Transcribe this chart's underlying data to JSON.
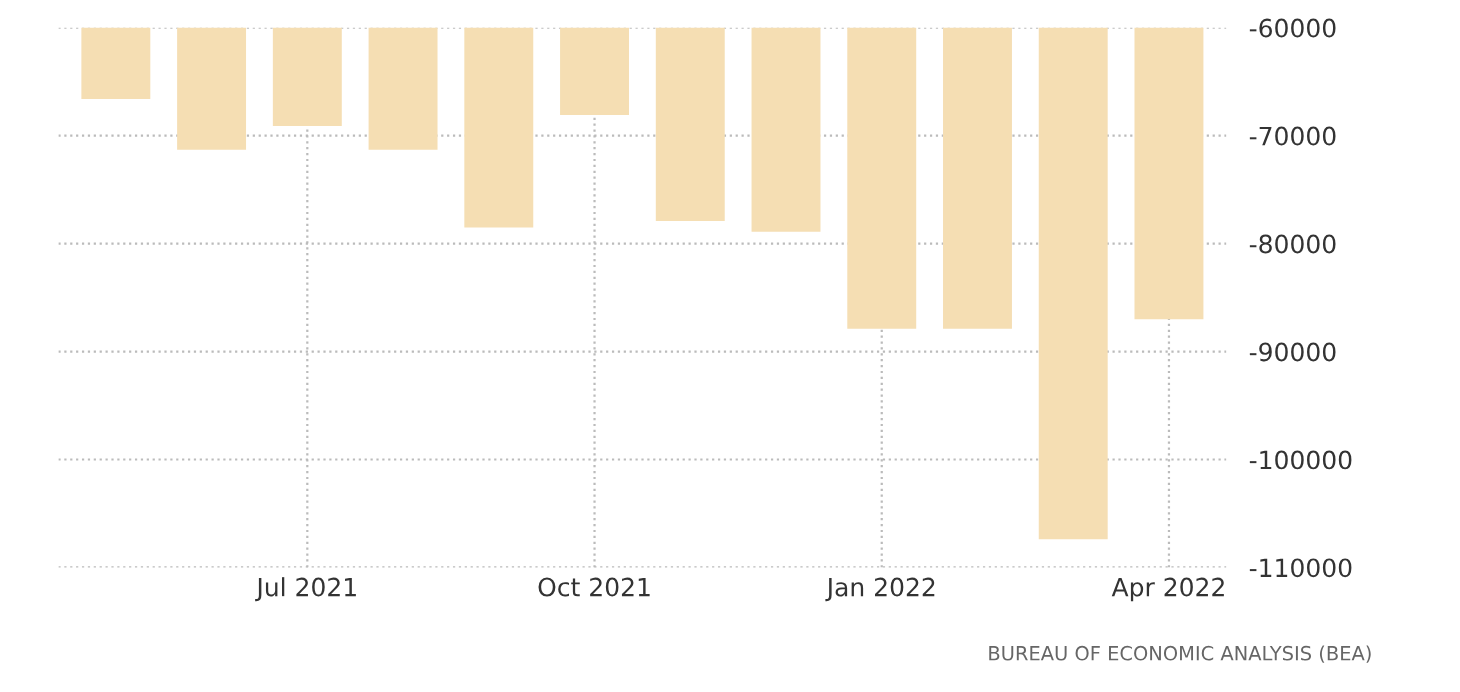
{
  "chart_data": {
    "type": "bar",
    "categories": [
      null,
      null,
      "Jul 2021",
      null,
      null,
      "Oct 2021",
      null,
      null,
      "Jan 2022",
      null,
      null,
      "Apr 2022"
    ],
    "values": [
      -66600,
      -71300,
      -69100,
      -71300,
      -78500,
      -68100,
      -77900,
      -78900,
      -87900,
      -87900,
      -107400,
      -87000
    ],
    "color": "#f5deb3",
    "ylim": [
      -110000,
      -60000
    ],
    "yticks": [
      -110000,
      -100000,
      -90000,
      -80000,
      -70000,
      -60000
    ],
    "grid": true,
    "annotations": [
      "BUREAU OF ECONOMIC ANALYSIS (BEA)"
    ]
  }
}
